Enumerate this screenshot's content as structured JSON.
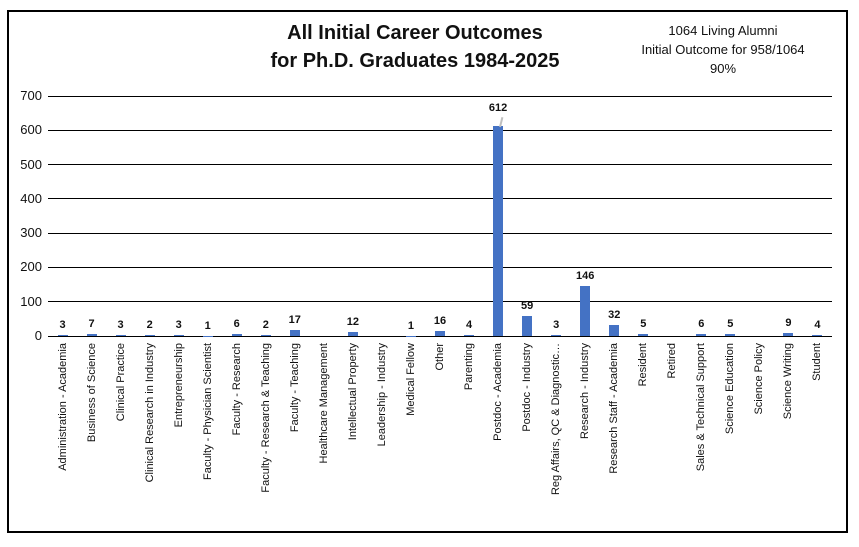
{
  "title": {
    "line1": "All Initial Career Outcomes",
    "line2": "for Ph.D. Graduates 1984-2025"
  },
  "annotation": {
    "line1": "1064 Living Alumni",
    "line2": "Initial Outcome for 958/1064",
    "line3": "90%"
  },
  "chart_data": {
    "type": "bar",
    "title": "All Initial Career Outcomes for Ph.D. Graduates 1984-2025",
    "annotation": "1064 Living Alumni Initial Outcome for 958/1064 90%",
    "categories": [
      "Administration - Academia",
      "Business of Science",
      "Clinical Practice",
      "Clinical Research in Industry",
      "Entrepreneurship",
      "Faculty - Physician Scientist",
      "Faculty - Research",
      "Faculty - Research & Teaching",
      "Faculty - Teaching",
      "Healthcare Management",
      "Intellectual Property",
      "Leadership - Industry",
      "Medical Fellow",
      "Other",
      "Parenting",
      "Postdoc - Academia",
      "Postdoc - Industry",
      "Reg Affairs, QC & Diagnostic…",
      "Research - Industry",
      "Research Staff - Academia",
      "Resident",
      "Retired",
      "Sales & Technical Support",
      "Science Education",
      "Science Policy",
      "Science Writing",
      "Student"
    ],
    "values": [
      3,
      7,
      3,
      2,
      3,
      1,
      6,
      2,
      17,
      null,
      12,
      null,
      1,
      16,
      4,
      612,
      59,
      3,
      146,
      32,
      5,
      null,
      6,
      5,
      null,
      9,
      4
    ],
    "xlabel": "",
    "ylabel": "",
    "ylim": [
      0,
      700
    ],
    "yticks": [
      0,
      100,
      200,
      300,
      400,
      500,
      600,
      700
    ],
    "grid": true,
    "legend": false,
    "bar_color": "#4472C4",
    "gridline_color": "#000000",
    "leader_line_color": "#bfbfbf"
  }
}
